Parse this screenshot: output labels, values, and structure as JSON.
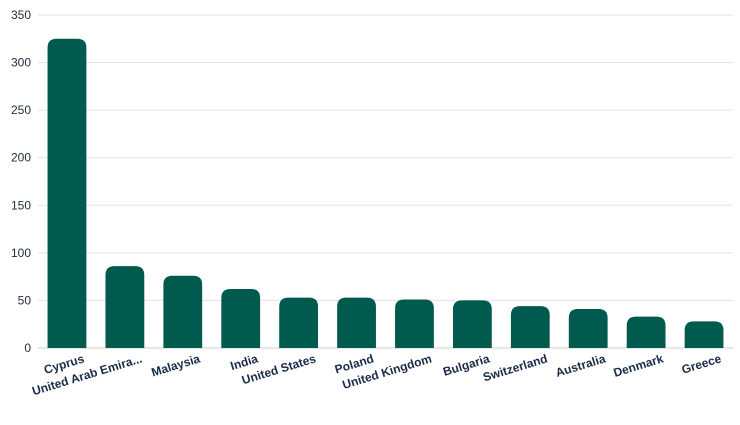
{
  "chart_data": {
    "type": "bar",
    "title": "",
    "xlabel": "",
    "ylabel": "",
    "categories": [
      "Cyprus",
      "United Arab Emira...",
      "Malaysia",
      "India",
      "United States",
      "Poland",
      "United Kingdom",
      "Bulgaria",
      "Switzerland",
      "Australia",
      "Denmark",
      "Greece"
    ],
    "values": [
      325,
      86,
      76,
      62,
      53,
      53,
      51,
      50,
      44,
      41,
      33,
      28
    ],
    "ylim": [
      0,
      350
    ],
    "yticks": [
      0,
      50,
      100,
      150,
      200,
      250,
      300,
      350
    ],
    "grid": true,
    "legend": "none",
    "bar_color": "#005a4e"
  }
}
